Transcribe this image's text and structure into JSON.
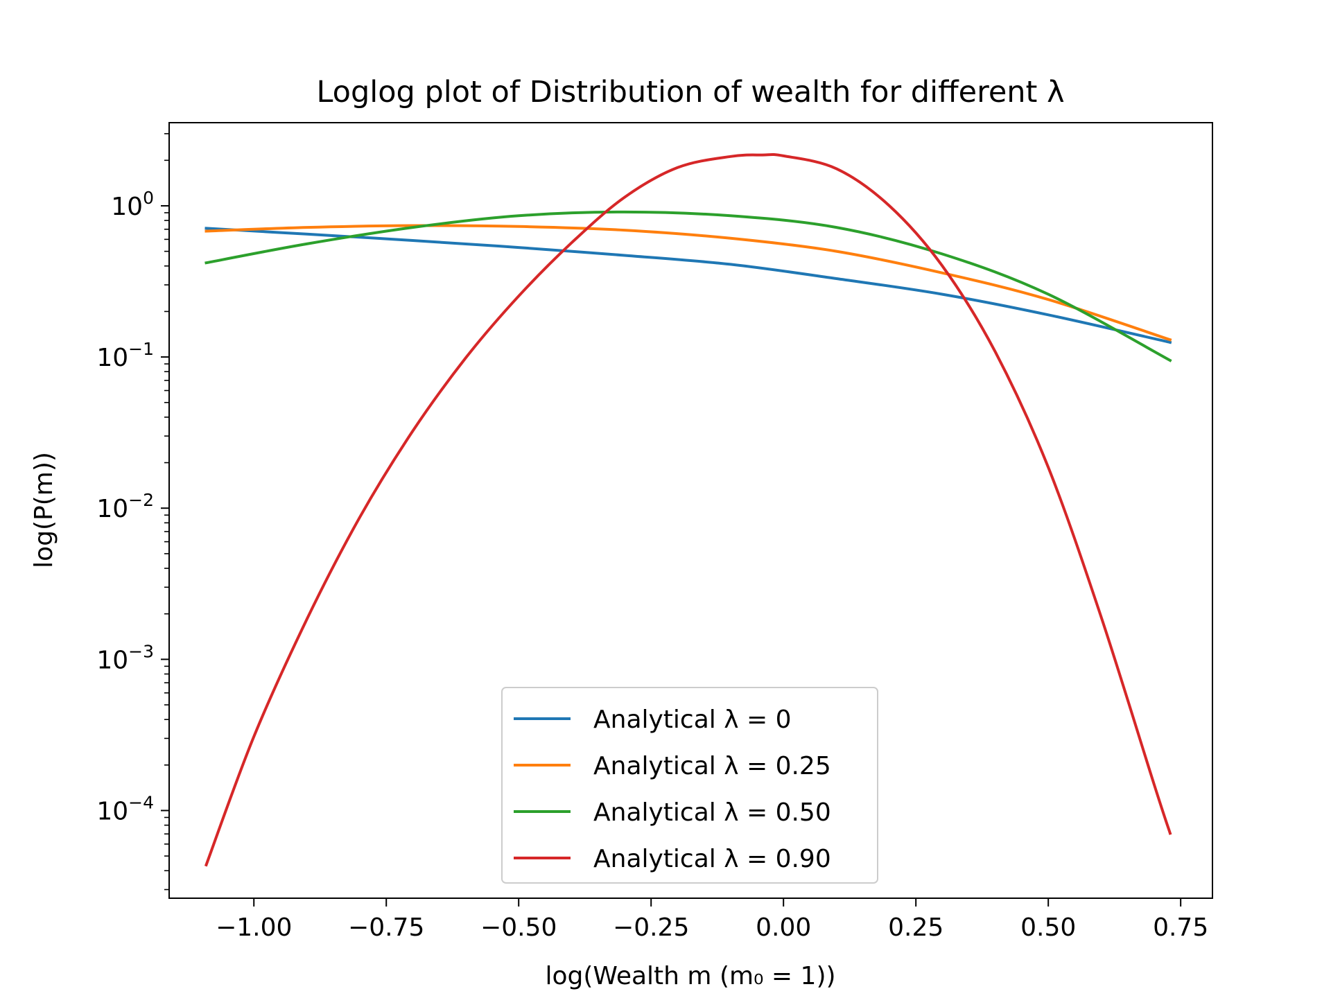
{
  "chart_data": {
    "type": "line",
    "title": "Loglog plot of Distribution of wealth for different λ",
    "xlabel": "log(Wealth m (m₀ = 1))",
    "ylabel": "log(P(m))",
    "yscale": "log",
    "xlim": [
      -1.16,
      0.81
    ],
    "ylim_log10": [
      -4.58,
      0.55
    ],
    "x_ticks": [
      -1.0,
      -0.75,
      -0.5,
      -0.25,
      0.0,
      0.25,
      0.5,
      0.75
    ],
    "x_tick_labels": [
      "−1.00",
      "−0.75",
      "−0.50",
      "−0.25",
      "0.00",
      "0.25",
      "0.50",
      "0.75"
    ],
    "y_ticks_exp": [
      0,
      -1,
      -2,
      -3,
      -4
    ],
    "y_tick_labels": [
      {
        "base": "10",
        "exp": "0"
      },
      {
        "base": "10",
        "exp": "−1"
      },
      {
        "base": "10",
        "exp": "−2"
      },
      {
        "base": "10",
        "exp": "−3"
      },
      {
        "base": "10",
        "exp": "−4"
      }
    ],
    "grid": false,
    "legend_position": "lower-center",
    "series": [
      {
        "name": "Analytical λ = 0",
        "color": "#1f77b4",
        "x": [
          -1.09,
          -0.9,
          -0.7,
          -0.5,
          -0.3,
          -0.1,
          0.1,
          0.3,
          0.5,
          0.73
        ],
        "y": [
          0.71,
          0.65,
          0.59,
          0.53,
          0.47,
          0.41,
          0.33,
          0.26,
          0.19,
          0.125
        ]
      },
      {
        "name": "Analytical λ = 0.25",
        "color": "#ff7f0e",
        "x": [
          -1.09,
          -0.9,
          -0.7,
          -0.5,
          -0.3,
          -0.1,
          0.1,
          0.3,
          0.5,
          0.73
        ],
        "y": [
          0.68,
          0.72,
          0.74,
          0.73,
          0.69,
          0.61,
          0.5,
          0.36,
          0.24,
          0.13
        ]
      },
      {
        "name": "Analytical λ = 0.50",
        "color": "#2ca02c",
        "x": [
          -1.09,
          -0.9,
          -0.7,
          -0.5,
          -0.3,
          -0.1,
          0.1,
          0.3,
          0.5,
          0.73
        ],
        "y": [
          0.42,
          0.56,
          0.72,
          0.86,
          0.91,
          0.86,
          0.72,
          0.48,
          0.26,
          0.095
        ]
      },
      {
        "name": "Analytical λ = 0.90",
        "color": "#d62728",
        "x": [
          -1.09,
          -1.0,
          -0.9,
          -0.8,
          -0.7,
          -0.6,
          -0.5,
          -0.4,
          -0.3,
          -0.2,
          -0.1,
          -0.04,
          0.0,
          0.1,
          0.2,
          0.3,
          0.4,
          0.5,
          0.6,
          0.7,
          0.73
        ],
        "y": [
          4.37e-05,
          0.000308,
          0.00184,
          0.00871,
          0.0324,
          0.0986,
          0.253,
          0.57,
          1.14,
          1.79,
          2.12,
          2.17,
          2.14,
          1.76,
          1.0,
          0.4,
          0.108,
          0.0186,
          0.0019,
          0.000148,
          7.07e-05
        ]
      }
    ]
  }
}
